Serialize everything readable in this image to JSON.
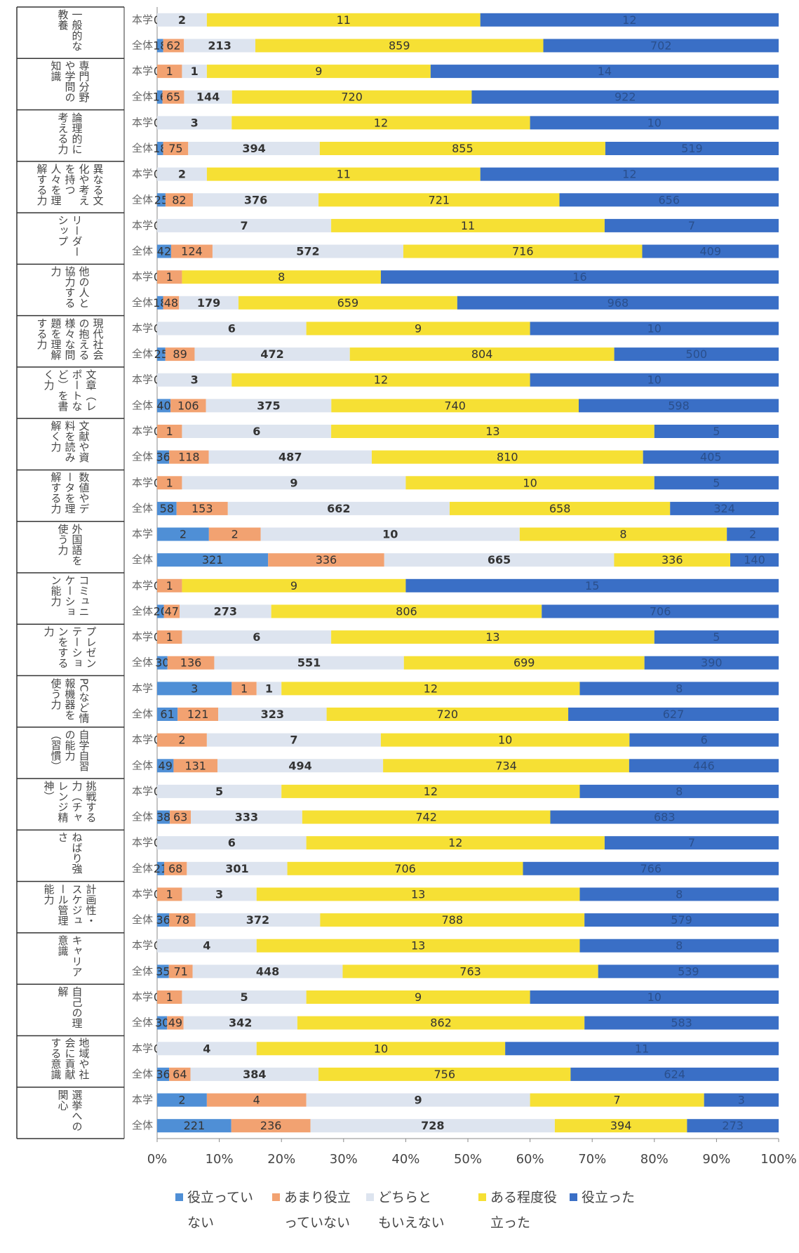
{
  "chart_data": {
    "type": "bar",
    "orientation": "horizontal",
    "stacked": "percent",
    "groups": [
      "一般的な教養",
      "専門分野や学問の知識",
      "論理的に考える力",
      "異なる文化や考えを持つ人々を理解する力",
      "リーダーシップ",
      "他の人と協力する力",
      "現代社会の抱える様々な問題を理解する力",
      "文章（レポートなど）を書く力",
      "文献や資料を読み解く力",
      "数値やデータを理解する力",
      "外国語を使う力",
      "コミュニケーション能力",
      "プレゼンテーションをする力",
      "PCなど情報機器を使う力",
      "自学自習の能力（習慣）",
      "挑戦する力（チャレンジ精神）",
      "ねばり強さ",
      "計画性・スケジュール管理能力",
      "キャリア意識",
      "自己の理解",
      "地域や社会に貢献する意識",
      "選挙への関心"
    ],
    "categories": [
      "本学",
      "全体",
      "本学",
      "全体",
      "本学",
      "全体",
      "本学",
      "全体",
      "本学",
      "全体",
      "本学",
      "全体",
      "本学",
      "全体",
      "本学",
      "全体",
      "本学",
      "全体",
      "本学",
      "全体",
      "本学",
      "全体",
      "本学",
      "全体",
      "本学",
      "全体",
      "本学",
      "全体",
      "本学",
      "全体",
      "本学",
      "全体",
      "本学",
      "全体",
      "本学",
      "全体",
      "本学",
      "全体",
      "本学",
      "全体",
      "本学",
      "全体",
      "本学",
      "全体"
    ],
    "series": [
      {
        "name": "役立っていない",
        "color": "#4f8fd6",
        "values": [
          0,
          18,
          0,
          16,
          0,
          18,
          0,
          25,
          0,
          42,
          0,
          18,
          0,
          25,
          0,
          40,
          0,
          36,
          0,
          58,
          2,
          321,
          0,
          20,
          0,
          30,
          3,
          61,
          0,
          49,
          0,
          38,
          0,
          21,
          0,
          36,
          0,
          35,
          0,
          30,
          0,
          36,
          2,
          221
        ]
      },
      {
        "name": "あまり役立っていない",
        "color": "#f2a271",
        "values": [
          0,
          62,
          1,
          65,
          0,
          75,
          0,
          82,
          0,
          124,
          1,
          48,
          0,
          89,
          0,
          106,
          1,
          118,
          1,
          153,
          2,
          336,
          1,
          47,
          1,
          136,
          1,
          121,
          2,
          131,
          0,
          63,
          0,
          68,
          1,
          78,
          0,
          71,
          1,
          49,
          0,
          64,
          4,
          236
        ]
      },
      {
        "name": "どちらともいえない",
        "color": "#dde4ef",
        "values": [
          2,
          213,
          1,
          144,
          3,
          394,
          2,
          376,
          7,
          572,
          0,
          179,
          6,
          472,
          3,
          375,
          6,
          487,
          9,
          662,
          10,
          665,
          0,
          273,
          6,
          551,
          1,
          323,
          7,
          494,
          5,
          333,
          6,
          301,
          3,
          372,
          4,
          448,
          5,
          342,
          4,
          384,
          9,
          728
        ]
      },
      {
        "name": "ある程度役立った",
        "color": "#f6e034",
        "values": [
          11,
          859,
          9,
          720,
          12,
          855,
          11,
          721,
          11,
          716,
          8,
          659,
          9,
          804,
          12,
          740,
          13,
          810,
          10,
          658,
          8,
          336,
          9,
          806,
          13,
          699,
          12,
          720,
          10,
          734,
          12,
          742,
          12,
          706,
          13,
          788,
          13,
          763,
          9,
          862,
          10,
          756,
          7,
          394
        ]
      },
      {
        "name": "役立った",
        "color": "#3a6fc6",
        "values": [
          12,
          702,
          14,
          922,
          10,
          519,
          12,
          656,
          7,
          409,
          16,
          968,
          10,
          500,
          10,
          598,
          5,
          405,
          5,
          324,
          2,
          140,
          15,
          706,
          5,
          390,
          8,
          627,
          6,
          446,
          8,
          683,
          7,
          766,
          8,
          579,
          8,
          539,
          10,
          583,
          11,
          624,
          3,
          273
        ]
      }
    ],
    "xlim": [
      0,
      100
    ],
    "xticks": [
      {
        "value": 0,
        "label": "0%"
      },
      {
        "value": 10,
        "label": "10%"
      },
      {
        "value": 20,
        "label": "20%"
      },
      {
        "value": 30,
        "label": "30%"
      },
      {
        "value": 40,
        "label": "40%"
      },
      {
        "value": 50,
        "label": "50%"
      },
      {
        "value": 60,
        "label": "60%"
      },
      {
        "value": 70,
        "label": "70%"
      },
      {
        "value": 80,
        "label": "80%"
      },
      {
        "value": 90,
        "label": "90%"
      },
      {
        "value": 100,
        "label": "100%"
      }
    ],
    "legend": "bottom"
  }
}
